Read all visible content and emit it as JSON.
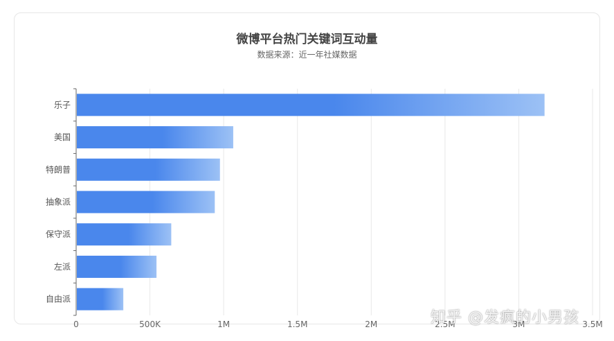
{
  "chart_data": {
    "type": "bar",
    "orientation": "horizontal",
    "title": "微博平台热门关键词互动量",
    "subtitle": "数据来源：近一年社媒数据",
    "categories": [
      "乐子",
      "美国",
      "特朗普",
      "抽象派",
      "保守派",
      "左派",
      "自由派"
    ],
    "values": [
      3170000,
      1060000,
      970000,
      935000,
      640000,
      540000,
      315000
    ],
    "xlim": [
      0,
      3500000
    ],
    "x_ticks": [
      0,
      500000,
      1000000,
      1500000,
      2000000,
      2500000,
      3000000,
      3500000
    ],
    "x_tick_labels": [
      "0",
      "500K",
      "1M",
      "1.5M",
      "2M",
      "2.5M",
      "3M",
      "3.5M"
    ],
    "grid": true,
    "bar_color_start": "#4a87ec",
    "bar_color_end": "#9cc1f5"
  },
  "watermark": "知乎 @发疯的小男孩"
}
